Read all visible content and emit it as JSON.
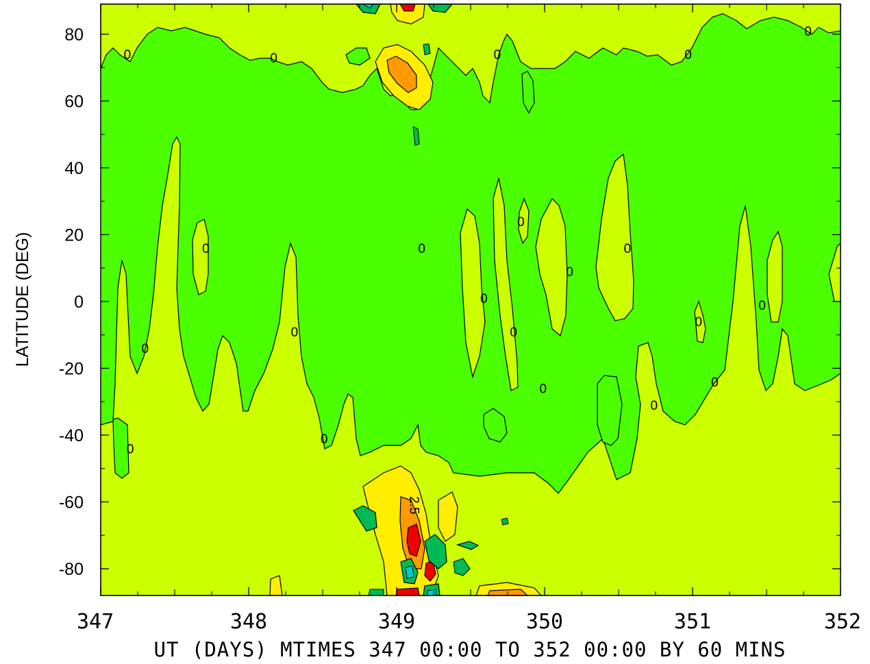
{
  "chart_data": {
    "type": "contour",
    "xlabel": "UT (DAYS) MTIMES 347 00:00 TO 352 00:00 BY   60 MINS",
    "ylabel": "LATITUDE (DEG)",
    "xlim": [
      347,
      352
    ],
    "ylim": [
      -88,
      89
    ],
    "x_ticks": [
      347,
      348,
      349,
      350,
      351,
      352
    ],
    "x_tick_labels": [
      "347",
      "348",
      "349",
      "350",
      "351",
      "352"
    ],
    "y_ticks": [
      80,
      60,
      40,
      20,
      0,
      -20,
      -40,
      -60,
      -80
    ],
    "y_tick_labels": [
      "80",
      "60",
      "40",
      "20",
      "0",
      "-20",
      "-40",
      "-60",
      "-80"
    ],
    "grid": false,
    "colors": {
      "background_level": "#4cff00",
      "positive_low": "#ccff00",
      "positive_mid": "#ffee00",
      "positive_high": "#ff9a00",
      "positive_max": "#ee0000",
      "negative_low": "#00bb55",
      "negative_high": "#00cccc"
    },
    "zero_contour_label": "0",
    "level_label": "2.5",
    "zero_labels": [
      {
        "x": 347.18,
        "y": 74
      },
      {
        "x": 348.17,
        "y": 73
      },
      {
        "x": 349.68,
        "y": 74
      },
      {
        "x": 350.97,
        "y": 74
      },
      {
        "x": 351.78,
        "y": 81
      },
      {
        "x": 347.71,
        "y": 16
      },
      {
        "x": 349.17,
        "y": 16
      },
      {
        "x": 349.84,
        "y": 24
      },
      {
        "x": 350.56,
        "y": 16
      },
      {
        "x": 350.17,
        "y": 9
      },
      {
        "x": 349.59,
        "y": 1
      },
      {
        "x": 351.47,
        "y": -1
      },
      {
        "x": 347.3,
        "y": -14
      },
      {
        "x": 348.31,
        "y": -9
      },
      {
        "x": 349.79,
        "y": -9
      },
      {
        "x": 351.04,
        "y": -6
      },
      {
        "x": 349.99,
        "y": -26
      },
      {
        "x": 351.15,
        "y": -24
      },
      {
        "x": 350.74,
        "y": -31
      },
      {
        "x": 347.2,
        "y": -44
      },
      {
        "x": 348.51,
        "y": -41
      }
    ],
    "level_label_position": {
      "x": 349.09,
      "y": -61
    }
  }
}
